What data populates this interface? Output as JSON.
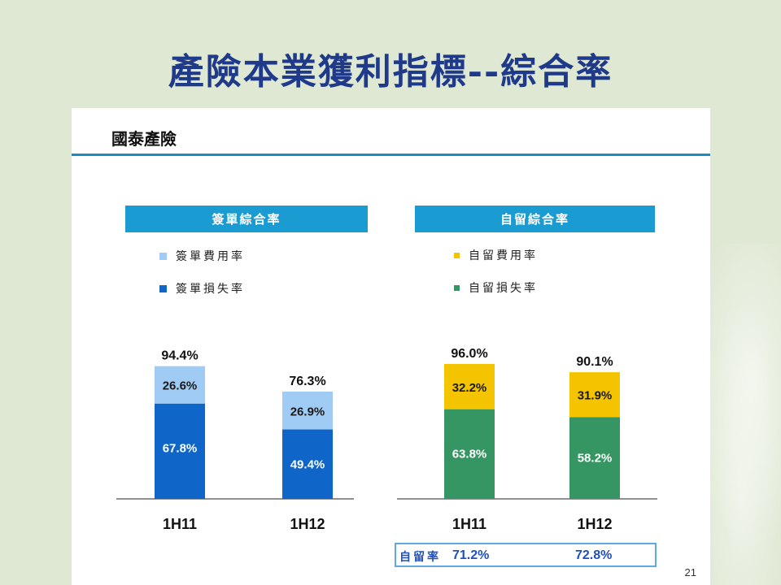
{
  "slide": {
    "title": "產險本業獲利指標--綜合率",
    "company": "國泰產險",
    "page_number": "21"
  },
  "colors": {
    "written_expense": "#9fcbf5",
    "written_loss": "#0f66c8",
    "retained_expense": "#f5c400",
    "retained_loss": "#359563",
    "header": "#1a9bd1"
  },
  "retention": {
    "label": "自留率",
    "values": [
      "71.2%",
      "72.8%"
    ]
  },
  "chart_data": [
    {
      "type": "bar",
      "stacked": true,
      "title": "簽單綜合率",
      "categories": [
        "1H11",
        "1H12"
      ],
      "series": [
        {
          "name": "簽單損失率",
          "values": [
            67.8,
            49.4
          ],
          "labels": [
            "67.8%",
            "49.4%"
          ]
        },
        {
          "name": "簽單費用率",
          "values": [
            26.6,
            26.9
          ],
          "labels": [
            "26.6%",
            "26.9%"
          ]
        }
      ],
      "totals": [
        "94.4%",
        "76.3%"
      ]
    },
    {
      "type": "bar",
      "stacked": true,
      "title": "自留綜合率",
      "categories": [
        "1H11",
        "1H12"
      ],
      "series": [
        {
          "name": "自留損失率",
          "values": [
            63.8,
            58.2
          ],
          "labels": [
            "63.8%",
            "58.2%"
          ]
        },
        {
          "name": "自留費用率",
          "values": [
            32.2,
            31.9
          ],
          "labels": [
            "32.2%",
            "31.9%"
          ]
        }
      ],
      "totals": [
        "96.0%",
        "90.1%"
      ]
    }
  ]
}
